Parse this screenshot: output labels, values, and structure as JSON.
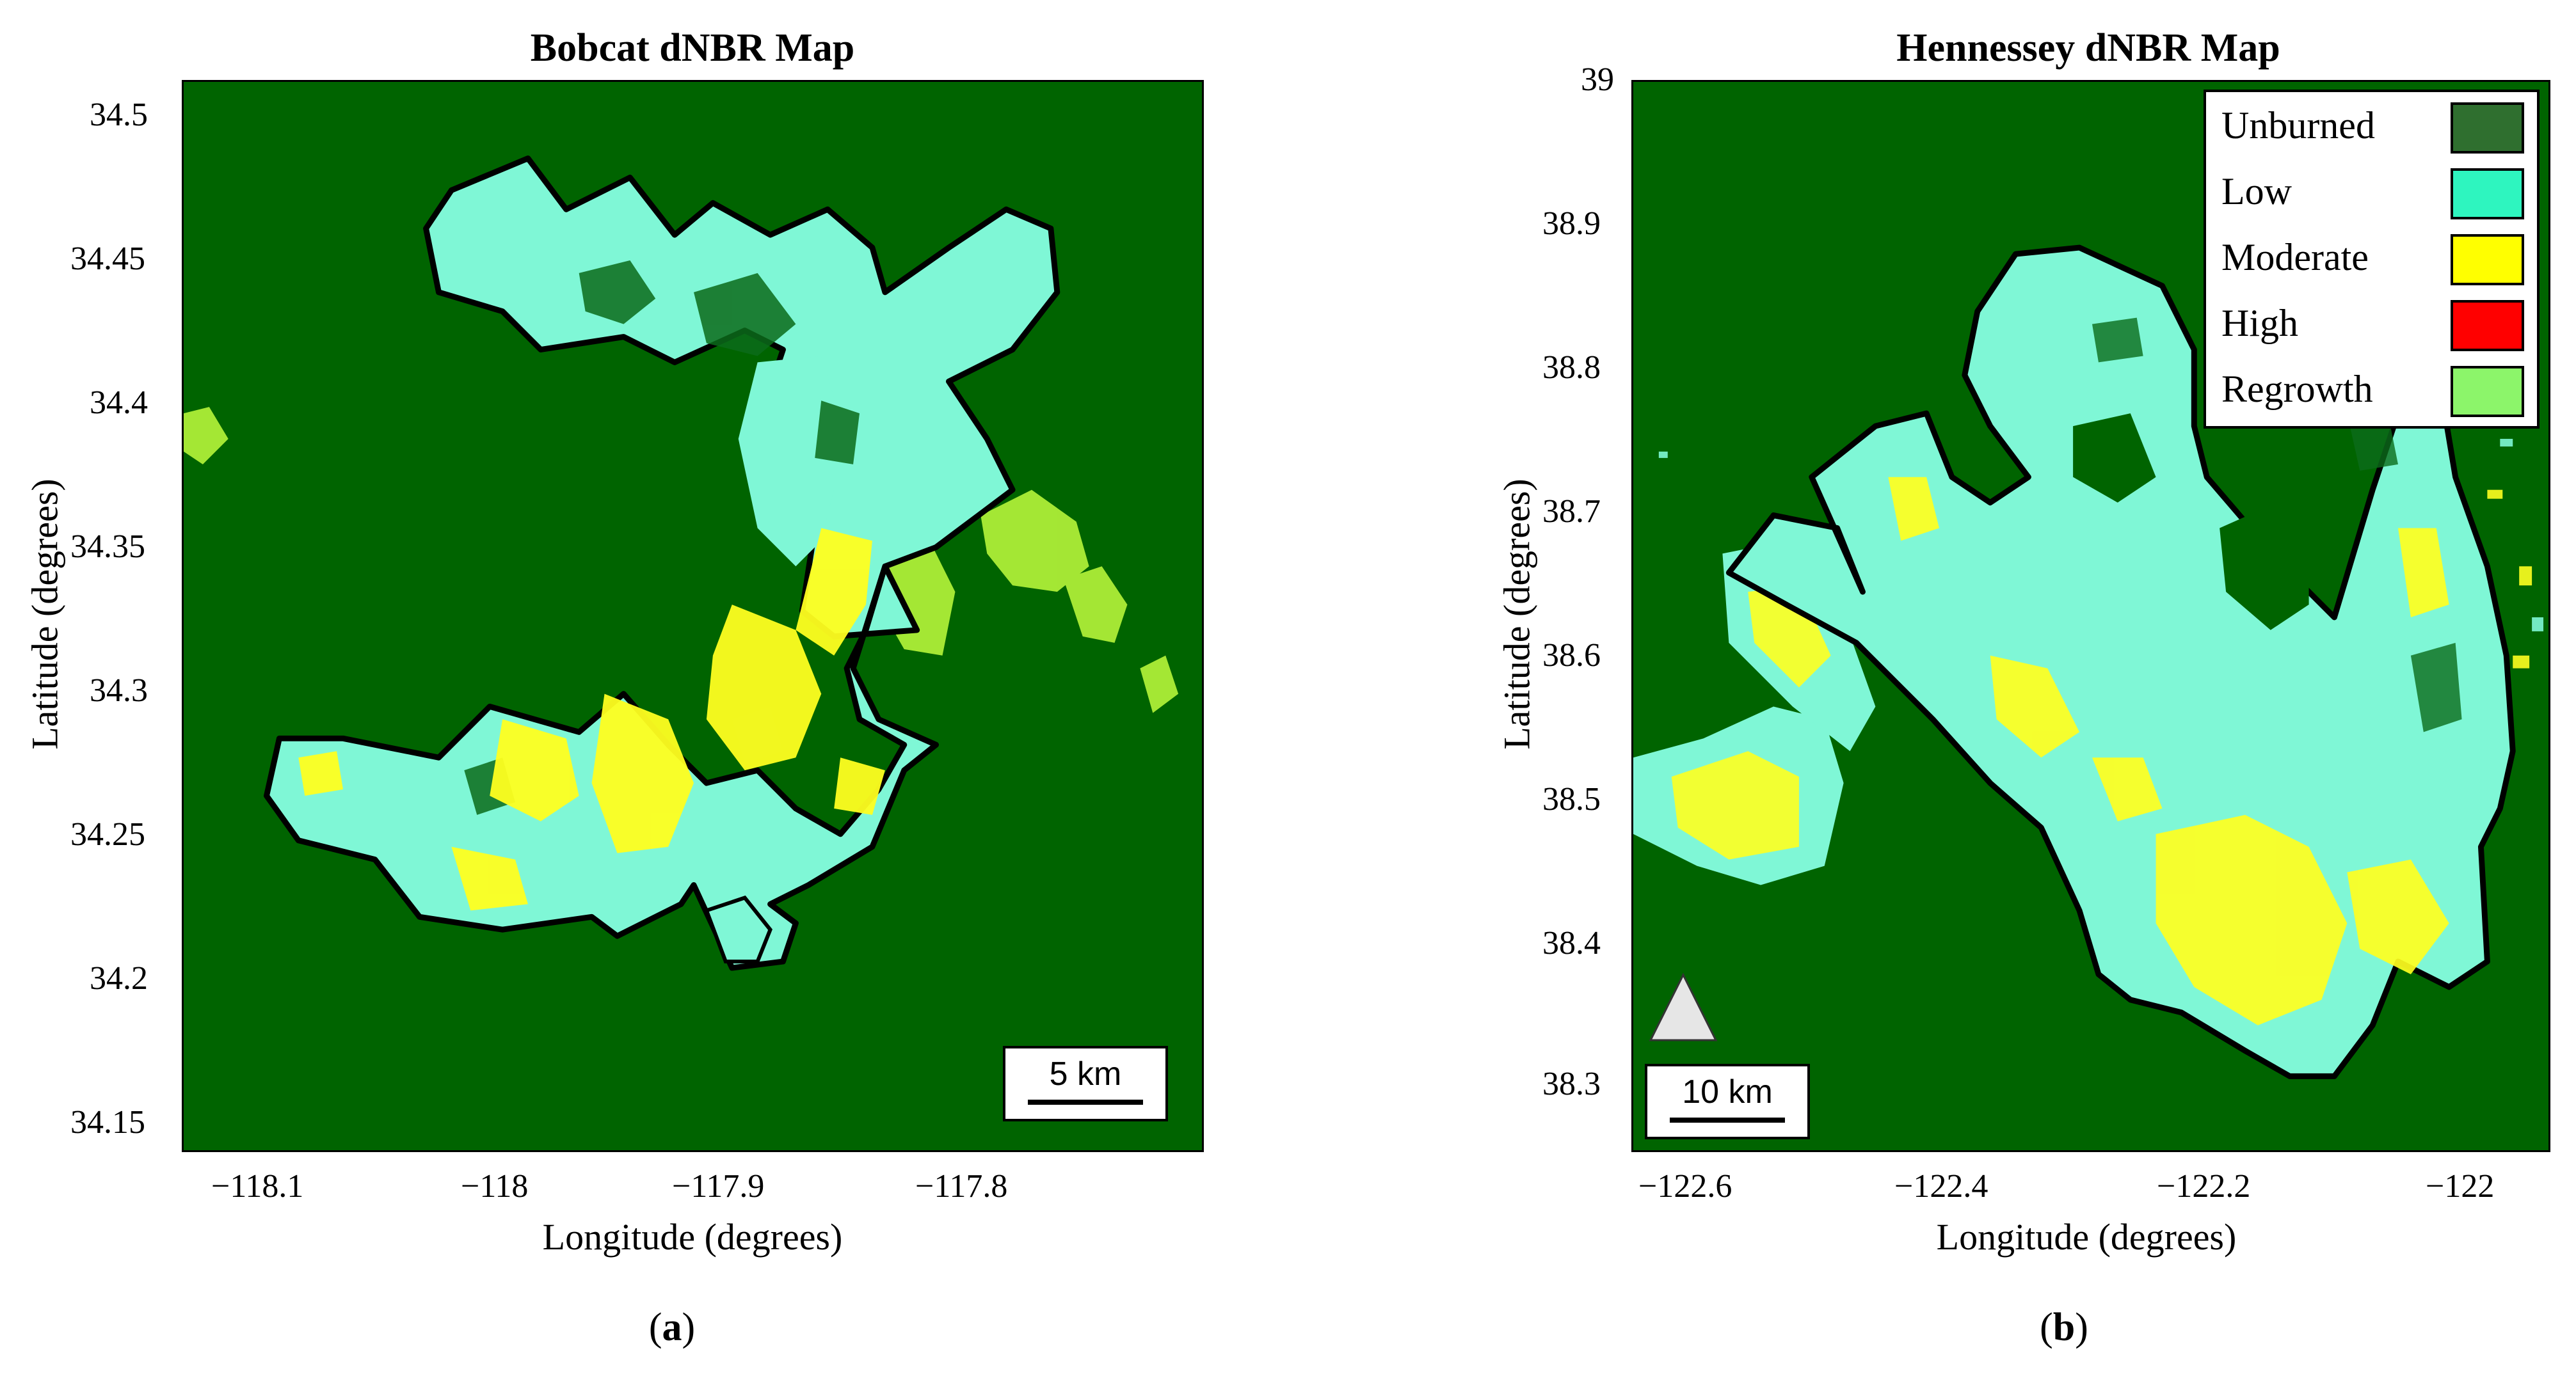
{
  "panel_a": {
    "title": "Bobcat dNBR Map",
    "x_label": "Longitude (degrees)",
    "y_label": "Latitude (degrees)",
    "x_ticks": [
      "−118.1",
      "−118",
      "−117.9",
      "−117.8"
    ],
    "x_tick_values": [
      -118.1,
      -118.0,
      -117.9,
      -117.8
    ],
    "x_range": [
      -118.135,
      -117.715
    ],
    "y_ticks": [
      "34.5",
      "34.45",
      "34.4",
      "34.35",
      "34.3",
      "34.25",
      "34.2",
      "34.15"
    ],
    "y_tick_values": [
      34.5,
      34.45,
      34.4,
      34.35,
      34.3,
      34.25,
      34.2,
      34.15
    ],
    "y_range": [
      34.137,
      34.518
    ],
    "scale_bar": "5 km",
    "caption_letter": "a"
  },
  "panel_b": {
    "title": "Hennessey dNBR Map",
    "x_label": "Longitude (degrees)",
    "y_label": "Latitude (degrees)",
    "x_ticks": [
      "−122.6",
      "−122.4",
      "−122.2",
      "−122"
    ],
    "x_tick_values": [
      -122.6,
      -122.4,
      -122.2,
      -122.0
    ],
    "x_range": [
      -122.657,
      -121.955
    ],
    "y_ticks": [
      "39",
      "38.9",
      "38.8",
      "38.7",
      "38.6",
      "38.5",
      "38.4",
      "38.3"
    ],
    "y_tick_values": [
      39.0,
      38.9,
      38.8,
      38.7,
      38.6,
      38.5,
      38.4,
      38.3
    ],
    "y_range": [
      38.255,
      39.0
    ],
    "scale_bar": "10 km",
    "caption_letter": "b",
    "north_arrow_icon": "north-arrow-icon",
    "legend": [
      {
        "label": "Unburned",
        "color": "#2f6f2f"
      },
      {
        "label": "Low",
        "color": "#2ef5bf"
      },
      {
        "label": "Moderate",
        "color": "#ffff00"
      },
      {
        "label": "High",
        "color": "#ff0000"
      },
      {
        "label": "Regrowth",
        "color": "#8cf56a"
      }
    ]
  },
  "colors": {
    "background": "#006400",
    "low": "#7ff7d6",
    "moderate": "#ffff20",
    "regrowth": "#b6f53a",
    "perimeter": "#000000"
  }
}
